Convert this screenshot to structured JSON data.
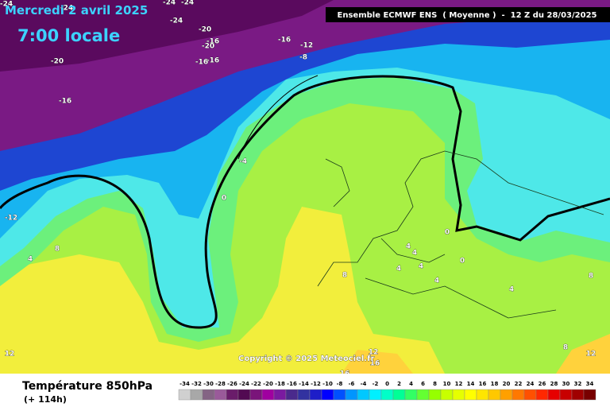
{
  "header": {
    "date": "Mercredi 2 avril 2025",
    "time": "7:00 locale",
    "run": "Ensemble ECMWF ENS  ( Moyenne )  -  12 Z du 28/03/2025"
  },
  "map": {
    "contour_labels": [
      "-24",
      "-24",
      "-24",
      "-24",
      "-24",
      "-20",
      "-16",
      "-20",
      "-16",
      "-16",
      "-20",
      "-16",
      "-16",
      "-12",
      "-8",
      "-4",
      "0",
      "-12",
      "8",
      "4",
      "0",
      "0",
      "4",
      "4",
      "4",
      "4",
      "4",
      "8",
      "4",
      "8",
      "8",
      "12",
      "16",
      "16",
      "12",
      "12"
    ]
  },
  "footer": {
    "title": "Température 850hPa",
    "lead": "(+ 114h)",
    "copyright": "Copyright © 2025 Meteociel.fr"
  },
  "legend": {
    "values": [
      -34,
      -32,
      -30,
      -28,
      -26,
      -24,
      -22,
      -20,
      -18,
      -16,
      -14,
      -12,
      -10,
      -8,
      -6,
      -4,
      -2,
      0,
      2,
      4,
      6,
      8,
      10,
      12,
      14,
      16,
      18,
      20,
      22,
      24,
      26,
      28,
      30,
      32,
      34
    ],
    "colors": [
      "#d0d0d0",
      "#a8a8a8",
      "#846484",
      "#9a5a9a",
      "#6a1c6a",
      "#520a52",
      "#7a147a",
      "#a000a0",
      "#7a1aa0",
      "#4a2a8c",
      "#3232a0",
      "#1e1ec8",
      "#0000ff",
      "#0050ff",
      "#0096ff",
      "#00c8ff",
      "#00f0ff",
      "#00ffc8",
      "#00ff96",
      "#32ff64",
      "#64ff32",
      "#96ff00",
      "#c8ff00",
      "#e6ff00",
      "#ffff00",
      "#ffe600",
      "#ffc800",
      "#ffa000",
      "#ff7800",
      "#ff5000",
      "#ff2800",
      "#e60000",
      "#c80000",
      "#a00000",
      "#780000"
    ]
  }
}
